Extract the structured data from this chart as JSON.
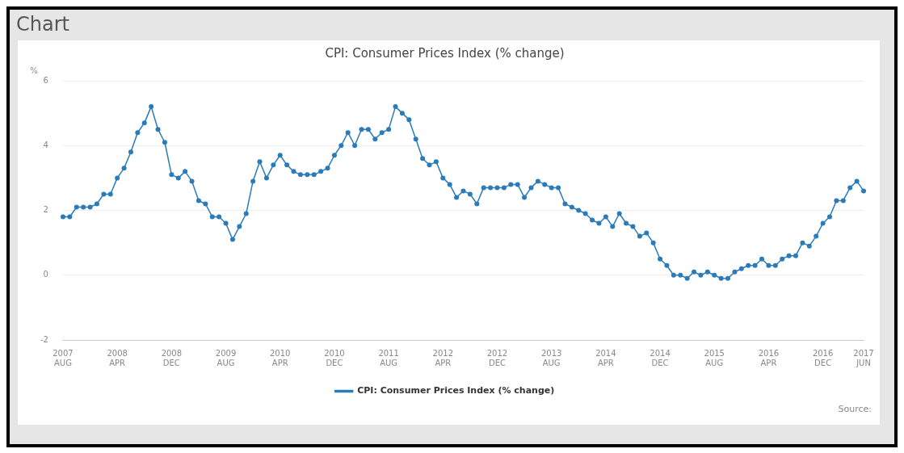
{
  "chart_data": {
    "type": "line",
    "title": "CPI: Consumer Prices Index (% change)",
    "ylabel": "%",
    "annotations": [
      "Chart",
      "Source:"
    ],
    "categories": [
      "2007 AUG",
      null,
      null,
      null,
      null,
      null,
      null,
      null,
      "2008 APR",
      null,
      null,
      null,
      null,
      null,
      null,
      null,
      "2008 DEC",
      null,
      null,
      null,
      null,
      null,
      null,
      null,
      "2009 AUG",
      null,
      null,
      null,
      null,
      null,
      null,
      null,
      "2010 APR",
      null,
      null,
      null,
      null,
      null,
      null,
      null,
      "2010 DEC",
      null,
      null,
      null,
      null,
      null,
      null,
      null,
      "2011 AUG",
      null,
      null,
      null,
      null,
      null,
      null,
      null,
      "2012 APR",
      null,
      null,
      null,
      null,
      null,
      null,
      null,
      "2012 DEC",
      null,
      null,
      null,
      null,
      null,
      null,
      null,
      "2013 AUG",
      null,
      null,
      null,
      null,
      null,
      null,
      null,
      "2014 APR",
      null,
      null,
      null,
      null,
      null,
      null,
      null,
      "2014 DEC",
      null,
      null,
      null,
      null,
      null,
      null,
      null,
      "2015 AUG",
      null,
      null,
      null,
      null,
      null,
      null,
      null,
      "2016 APR",
      null,
      null,
      null,
      null,
      null,
      null,
      null,
      "2016 DEC",
      null,
      null,
      null,
      null,
      null,
      "2017 JUN"
    ],
    "series": [
      {
        "name": "CPI: Consumer Prices Index (% change)",
        "color": "#2b7bb9",
        "values": [
          1.8,
          1.8,
          2.1,
          2.1,
          2.1,
          2.2,
          2.5,
          2.5,
          3.0,
          3.3,
          3.8,
          4.4,
          4.7,
          5.2,
          4.5,
          4.1,
          3.1,
          3.0,
          3.2,
          2.9,
          2.3,
          2.2,
          1.8,
          1.8,
          1.6,
          1.1,
          1.5,
          1.9,
          2.9,
          3.5,
          3.0,
          3.4,
          3.7,
          3.4,
          3.2,
          3.1,
          3.1,
          3.1,
          3.2,
          3.3,
          3.7,
          4.0,
          4.4,
          4.0,
          4.5,
          4.5,
          4.2,
          4.4,
          4.5,
          5.2,
          5.0,
          4.8,
          4.2,
          3.6,
          3.4,
          3.5,
          3.0,
          2.8,
          2.4,
          2.6,
          2.5,
          2.2,
          2.7,
          2.7,
          2.7,
          2.7,
          2.8,
          2.8,
          2.4,
          2.7,
          2.9,
          2.8,
          2.7,
          2.7,
          2.2,
          2.1,
          2.0,
          1.9,
          1.7,
          1.6,
          1.8,
          1.5,
          1.9,
          1.6,
          1.5,
          1.2,
          1.3,
          1.0,
          0.5,
          0.3,
          0.0,
          0.0,
          -0.1,
          0.1,
          0.0,
          0.1,
          0.0,
          -0.1,
          -0.1,
          0.1,
          0.2,
          0.3,
          0.3,
          0.5,
          0.3,
          0.3,
          0.5,
          0.6,
          0.6,
          1.0,
          0.9,
          1.2,
          1.6,
          1.8,
          2.3,
          2.3,
          2.7,
          2.9,
          2.6
        ]
      }
    ],
    "ylim": [
      -2,
      6
    ],
    "yticks": [
      -2,
      0,
      2,
      4,
      6
    ],
    "grid": "y",
    "legend": "bottom",
    "marker": "circle",
    "line_style": "solid"
  }
}
